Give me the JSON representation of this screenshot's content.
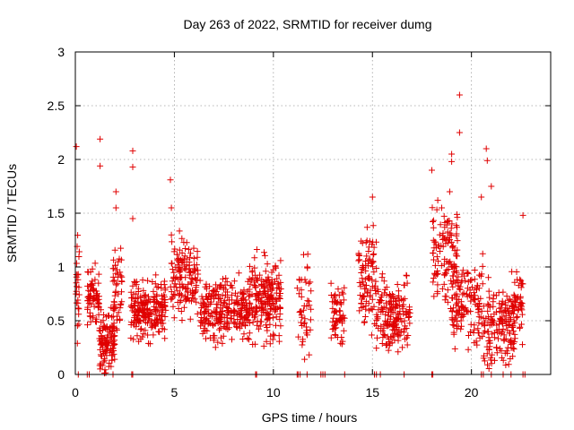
{
  "chart_data": {
    "type": "scatter",
    "title": "Day 263 of 2022, SRMTID for receiver dumg",
    "xlabel": "GPS time / hours",
    "ylabel": "SRMTID / TECUs",
    "xlim": [
      0,
      24
    ],
    "ylim": [
      0,
      3
    ],
    "x_ticks": [
      0,
      5,
      10,
      15,
      20
    ],
    "x_tick_labels": [
      "0",
      "5",
      "10",
      "15",
      "20"
    ],
    "y_ticks": [
      0,
      0.5,
      1,
      1.5,
      2,
      2.5,
      3
    ],
    "y_tick_labels": [
      "0",
      "0.5",
      "1",
      "1.5",
      "2",
      "2.5",
      "3"
    ],
    "grid": true,
    "marker": "+",
    "marker_color": "#e00000",
    "series": [
      {
        "name": "SRMTID",
        "seed": 263,
        "note": "dense scatter of ~1500 points; clusters described below, points sampled within each cluster",
        "clusters": [
          {
            "x": [
              0.0,
              0.2
            ],
            "y": [
              0.3,
              1.4
            ],
            "n": 25
          },
          {
            "x": [
              0.6,
              1.2
            ],
            "y": [
              0.4,
              1.0
            ],
            "n": 70
          },
          {
            "x": [
              1.2,
              2.0
            ],
            "y": [
              0.0,
              0.6
            ],
            "n": 110
          },
          {
            "x": [
              1.9,
              2.4
            ],
            "y": [
              0.3,
              1.2
            ],
            "n": 50
          },
          {
            "x": [
              2.8,
              4.6
            ],
            "y": [
              0.3,
              0.9
            ],
            "n": 210
          },
          {
            "x": [
              4.8,
              6.2
            ],
            "y": [
              0.5,
              1.3
            ],
            "n": 140
          },
          {
            "x": [
              6.3,
              7.8
            ],
            "y": [
              0.3,
              0.9
            ],
            "n": 160
          },
          {
            "x": [
              7.8,
              8.8
            ],
            "y": [
              0.3,
              0.9
            ],
            "n": 100
          },
          {
            "x": [
              8.8,
              10.4
            ],
            "y": [
              0.3,
              1.1
            ],
            "n": 190
          },
          {
            "x": [
              11.2,
              11.9
            ],
            "y": [
              0.2,
              1.1
            ],
            "n": 45
          },
          {
            "x": [
              12.9,
              13.6
            ],
            "y": [
              0.2,
              0.9
            ],
            "n": 60
          },
          {
            "x": [
              14.3,
              15.2
            ],
            "y": [
              0.4,
              1.4
            ],
            "n": 90
          },
          {
            "x": [
              15.2,
              16.9
            ],
            "y": [
              0.2,
              0.9
            ],
            "n": 170
          },
          {
            "x": [
              18.0,
              19.3
            ],
            "y": [
              0.6,
              1.6
            ],
            "n": 110
          },
          {
            "x": [
              19.0,
              20.6
            ],
            "y": [
              0.2,
              1.1
            ],
            "n": 140
          },
          {
            "x": [
              20.6,
              22.2
            ],
            "y": [
              0.0,
              0.8
            ],
            "n": 150
          },
          {
            "x": [
              22.0,
              22.6
            ],
            "y": [
              0.3,
              1.0
            ],
            "n": 50
          }
        ],
        "outliers": [
          [
            0.05,
            2.12
          ],
          [
            1.25,
            2.19
          ],
          [
            1.25,
            1.94
          ],
          [
            2.05,
            1.7
          ],
          [
            2.05,
            1.55
          ],
          [
            2.9,
            2.08
          ],
          [
            2.9,
            1.93
          ],
          [
            2.9,
            1.45
          ],
          [
            4.8,
            1.81
          ],
          [
            4.85,
            1.55
          ],
          [
            15.0,
            1.65
          ],
          [
            18.0,
            1.9
          ],
          [
            18.5,
            1.55
          ],
          [
            19.0,
            1.98
          ],
          [
            19.0,
            2.05
          ],
          [
            19.4,
            2.6
          ],
          [
            19.4,
            2.25
          ],
          [
            20.75,
            2.1
          ],
          [
            20.8,
            1.99
          ],
          [
            20.5,
            1.65
          ],
          [
            18.9,
            1.7
          ],
          [
            21.0,
            1.75
          ],
          [
            22.6,
            1.48
          ]
        ],
        "zero_line_points": [
          0.15,
          0.6,
          0.7,
          1.9,
          2.85,
          2.9,
          9.1,
          9.15,
          11.2,
          11.25,
          11.35,
          11.7,
          12.4,
          12.5,
          12.6,
          13.6,
          15.1,
          15.2,
          15.4,
          16.6,
          18.0,
          18.05,
          20.5,
          20.6,
          21.0,
          21.6,
          22.0,
          22.6,
          22.7
        ]
      }
    ]
  }
}
